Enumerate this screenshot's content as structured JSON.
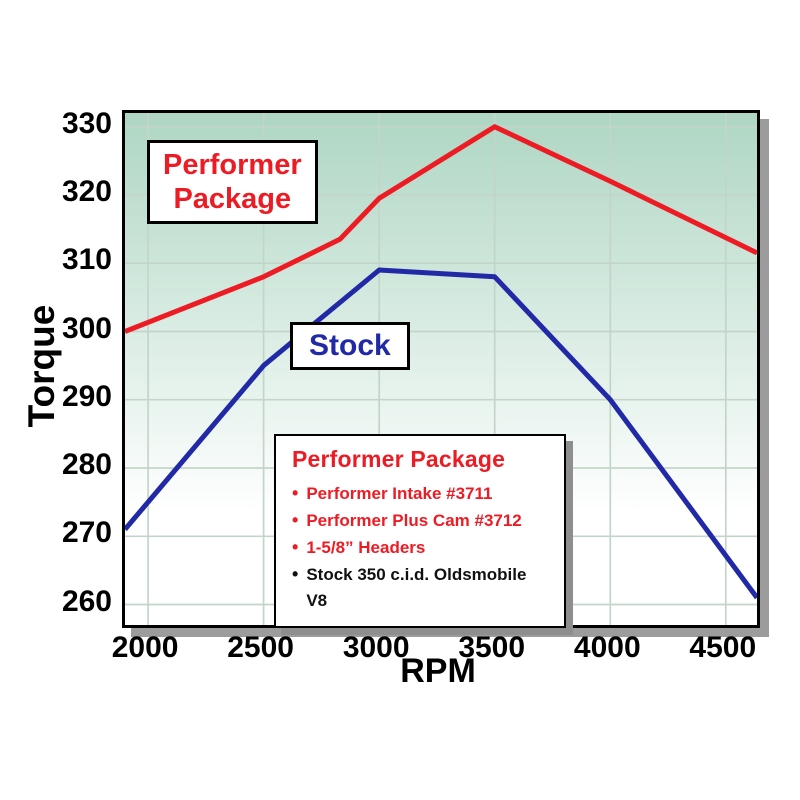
{
  "colors": {
    "grid": "#c3d5c9",
    "plot_bg_top": "#aed6c3",
    "plot_bg_bottom": "#ffffff",
    "border": "#000000",
    "shadow": "#9c9c9c",
    "axis_text": "#000000"
  },
  "annotations": {
    "performer_box": {
      "line1": "Performer",
      "line2": "Package"
    },
    "stock_box": {
      "label": "Stock"
    }
  },
  "legend": {
    "title": "Performer Package",
    "title_color": "#ed1c24",
    "items": [
      {
        "text": "Performer Intake #3711",
        "color": "#ed1c24"
      },
      {
        "text": "Performer Plus Cam #3712",
        "color": "#ed1c24"
      },
      {
        "text": "1-5/8” Headers",
        "color": "#ed1c24"
      },
      {
        "text": "Stock 350 c.i.d. Oldsmobile V8",
        "color": "#111111"
      }
    ]
  },
  "chart_data": {
    "type": "line",
    "title": "",
    "xlabel": "RPM",
    "ylabel": "Torque",
    "grid": true,
    "legend_position": "inside-lower-middle",
    "x_ticks": [
      2000,
      2500,
      3000,
      3500,
      4000,
      4500
    ],
    "y_ticks": [
      260,
      270,
      280,
      290,
      300,
      310,
      320,
      330
    ],
    "x_range": [
      1900,
      4635
    ],
    "y_range": [
      257,
      332
    ],
    "series": [
      {
        "name": "Performer Package",
        "color": "#ed1c24",
        "points": [
          [
            1900,
            300
          ],
          [
            2500,
            308
          ],
          [
            2830,
            313.5
          ],
          [
            3000,
            319.5
          ],
          [
            3500,
            330
          ],
          [
            4000,
            322
          ],
          [
            4635,
            311.5
          ]
        ]
      },
      {
        "name": "Stock",
        "color": "#2129a6",
        "points": [
          [
            1900,
            271
          ],
          [
            2500,
            295
          ],
          [
            3000,
            309
          ],
          [
            3500,
            308
          ],
          [
            4000,
            290
          ],
          [
            4635,
            261
          ]
        ]
      }
    ]
  }
}
